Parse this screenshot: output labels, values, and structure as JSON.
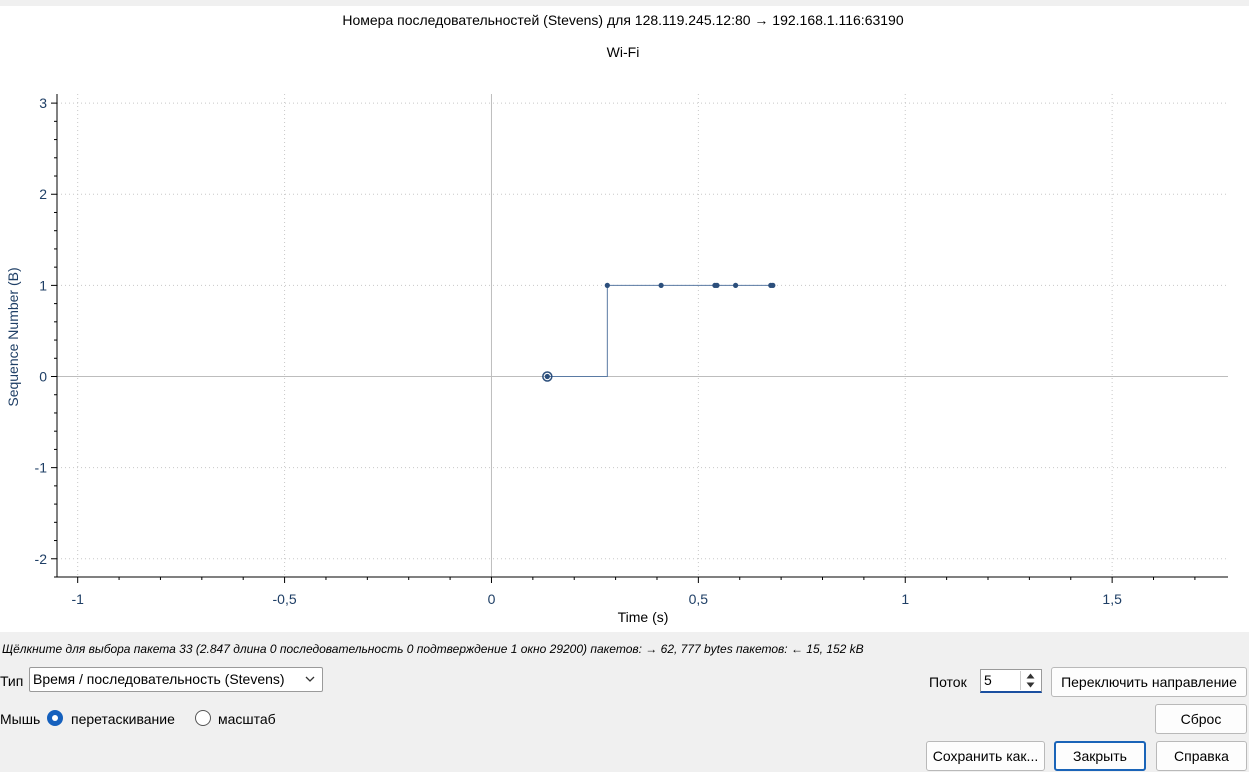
{
  "chart_data": {
    "type": "scatter",
    "title": "Номера последовательностей (Stevens) для 128.119.245.12:80 → 192.168.1.116:63190",
    "subtitle": "Wi-Fi",
    "xlabel": "Time (s)",
    "ylabel": "Sequence Number (B)",
    "xlim": [
      -1.05,
      1.78
    ],
    "ylim": [
      -2.2,
      3.1
    ],
    "x_ticks": [
      -1,
      -0.5,
      0,
      0.5,
      1,
      1.5
    ],
    "x_tick_labels": [
      "-1",
      "-0,5",
      "0",
      "0,5",
      "1",
      "1,5"
    ],
    "y_ticks": [
      -2,
      -1,
      0,
      1,
      2,
      3
    ],
    "y_tick_labels": [
      "-2",
      "-1",
      "0",
      "1",
      "2",
      "3"
    ],
    "grid": true,
    "series": [
      {
        "color": "#2c4f7c",
        "x": [
          0.135,
          0.28,
          0.41,
          0.54,
          0.545,
          0.59,
          0.675,
          0.68
        ],
        "y": [
          0,
          1,
          1,
          1,
          1,
          1,
          1,
          1
        ]
      }
    ],
    "step_line": {
      "x": [
        0.135,
        0.28,
        0.28,
        0.68
      ],
      "y": [
        0,
        0,
        1,
        1
      ]
    },
    "selected_point": {
      "x": 0.135,
      "y": 0
    }
  },
  "hint": "Щёлкните для выбора пакета 33 (2.847 длина 0 последовательность 0 подтверждение 1 окно 29200) пакетов: → 62, 777 bytes пакетов: ← 15, 152 kB",
  "controls": {
    "type_label": "Тип",
    "type_value": "Время / последовательность (Stevens)",
    "mouse_label": "Мышь",
    "drag_label": "перетаскивание",
    "zoom_label": "масштаб",
    "stream_label": "Поток",
    "stream_value": "5",
    "switch_direction": "Переключить направление",
    "reset": "Сброс",
    "save_as": "Сохранить как...",
    "close": "Закрыть",
    "help": "Справка"
  }
}
